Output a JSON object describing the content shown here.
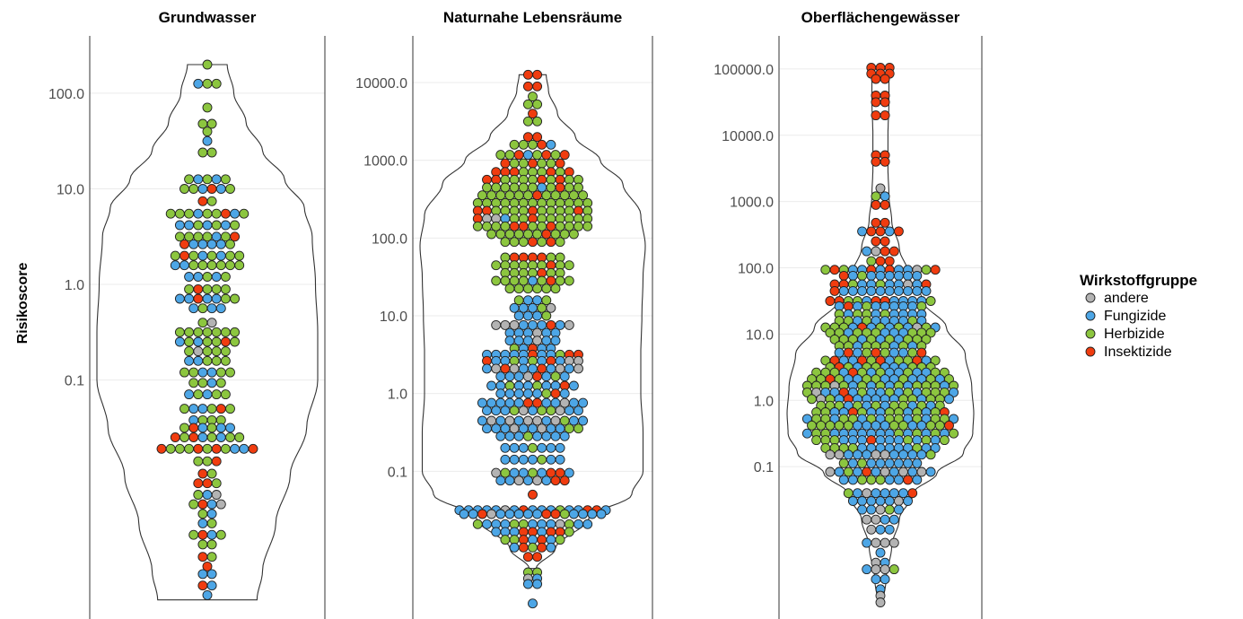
{
  "chart_data": {
    "type": "violin-beeswarm",
    "ylabel": "Risikoscore",
    "y_scale": "log10",
    "legend": {
      "title": "Wirkstoffgruppe",
      "placement": "right",
      "entries": [
        {
          "name": "andere",
          "color": "#b3b3b3"
        },
        {
          "name": "Fungizide",
          "color": "#4da6e6"
        },
        {
          "name": "Herbizide",
          "color": "#8cc63f"
        },
        {
          "name": "Insektizide",
          "color": "#f03c0f"
        }
      ]
    },
    "panels": [
      {
        "title": "Grundwasser",
        "ylim_log10": [
          -3.5,
          2.6
        ],
        "ticks": [
          {
            "value": 100,
            "label": "100.0"
          },
          {
            "value": 10,
            "label": "10.0"
          },
          {
            "value": 1,
            "label": "1.0"
          },
          {
            "value": 0.1,
            "label": "0.1"
          }
        ],
        "range_log10": [
          -3.3,
          2.3
        ],
        "density": [
          [
            -3.3,
            0.45
          ],
          [
            -3.0,
            0.5
          ],
          [
            -2.5,
            0.62
          ],
          [
            -2.0,
            0.75
          ],
          [
            -1.5,
            0.9
          ],
          [
            -1.0,
            1.0
          ],
          [
            -0.5,
            1.0
          ],
          [
            0.0,
            0.98
          ],
          [
            0.5,
            0.95
          ],
          [
            0.8,
            0.88
          ],
          [
            1.1,
            0.7
          ],
          [
            1.4,
            0.5
          ],
          [
            1.7,
            0.35
          ],
          [
            2.0,
            0.24
          ],
          [
            2.3,
            0.18
          ]
        ],
        "rows": [
          {
            "y": 2.3,
            "c": "H"
          },
          {
            "y": 2.1,
            "c": "FHH"
          },
          {
            "y": 1.85,
            "c": "H"
          },
          {
            "y": 1.68,
            "c": "HH"
          },
          {
            "y": 1.6,
            "c": "H"
          },
          {
            "y": 1.5,
            "c": "F"
          },
          {
            "y": 1.38,
            "c": "HH"
          },
          {
            "y": 1.1,
            "c": "HFHFH"
          },
          {
            "y": 1.0,
            "c": "HHFIFH"
          },
          {
            "y": 0.87,
            "c": "IH"
          },
          {
            "y": 0.74,
            "c": "HHHFHHIFH"
          },
          {
            "y": 0.62,
            "c": "FFHFHFH"
          },
          {
            "y": 0.5,
            "c": "HHHHFHI"
          },
          {
            "y": 0.42,
            "c": "IFFFFH"
          },
          {
            "y": 0.3,
            "c": "HIHFHFHH"
          },
          {
            "y": 0.2,
            "c": "FFHHHHHH"
          },
          {
            "y": 0.08,
            "c": "FFHFH"
          },
          {
            "y": -0.05,
            "c": "HIHHH"
          },
          {
            "y": -0.15,
            "c": "FFIFFHH"
          },
          {
            "y": -0.25,
            "c": "FHFF"
          },
          {
            "y": -0.4,
            "c": "HA"
          },
          {
            "y": -0.5,
            "c": "HHHHHHH"
          },
          {
            "y": -0.6,
            "c": "FHFHHIH"
          },
          {
            "y": -0.7,
            "c": "HAHHH"
          },
          {
            "y": -0.8,
            "c": "FFHHH"
          },
          {
            "y": -0.92,
            "c": "HHFFHH"
          },
          {
            "y": -1.03,
            "c": "HHFH"
          },
          {
            "y": -1.15,
            "c": "FHFHH"
          },
          {
            "y": -1.3,
            "c": "HFFHIH"
          },
          {
            "y": -1.42,
            "c": "FHHH"
          },
          {
            "y": -1.5,
            "c": "HIFHFF"
          },
          {
            "y": -1.6,
            "c": "IHIFHFHH"
          },
          {
            "y": -1.72,
            "c": "IHHHIHIHFFI"
          },
          {
            "y": -1.85,
            "c": "HHI"
          },
          {
            "y": -1.98,
            "c": "IH"
          },
          {
            "y": -2.08,
            "c": "IIH"
          },
          {
            "y": -2.2,
            "c": "HFA"
          },
          {
            "y": -2.3,
            "c": "HIFA"
          },
          {
            "y": -2.4,
            "c": "HF"
          },
          {
            "y": -2.5,
            "c": "FH"
          },
          {
            "y": -2.62,
            "c": "HIFH"
          },
          {
            "y": -2.72,
            "c": "HH"
          },
          {
            "y": -2.85,
            "c": "IH"
          },
          {
            "y": -2.95,
            "c": "I"
          },
          {
            "y": -3.03,
            "c": "FF"
          },
          {
            "y": -3.15,
            "c": "IF"
          },
          {
            "y": -3.25,
            "c": "F"
          }
        ]
      },
      {
        "title": "Naturnahe Lebensräume",
        "ylim_log10": [
          -2.9,
          4.6
        ],
        "ticks": [
          {
            "value": 10000,
            "label": "10000.0"
          },
          {
            "value": 1000,
            "label": "1000.0"
          },
          {
            "value": 100,
            "label": "100.0"
          },
          {
            "value": 10,
            "label": "10.0"
          },
          {
            "value": 1,
            "label": "1.0"
          },
          {
            "value": 0.1,
            "label": "0.1"
          }
        ],
        "range_log10": [
          -2.25,
          4.1
        ],
        "density": [
          [
            -2.25,
            0.03
          ],
          [
            -2.0,
            0.2
          ],
          [
            -1.6,
            0.5
          ],
          [
            -1.3,
            0.88
          ],
          [
            -1.0,
            0.98
          ],
          [
            -0.5,
            0.98
          ],
          [
            0.0,
            0.96
          ],
          [
            0.5,
            0.96
          ],
          [
            1.0,
            0.97
          ],
          [
            1.5,
            0.98
          ],
          [
            1.9,
            1.0
          ],
          [
            2.3,
            0.96
          ],
          [
            2.7,
            0.8
          ],
          [
            3.0,
            0.6
          ],
          [
            3.3,
            0.38
          ],
          [
            3.6,
            0.22
          ],
          [
            3.9,
            0.14
          ],
          [
            4.1,
            0.12
          ]
        ],
        "rows": [
          {
            "y": 4.1,
            "c": "II"
          },
          {
            "y": 3.95,
            "c": "II"
          },
          {
            "y": 3.82,
            "c": "H"
          },
          {
            "y": 3.72,
            "c": "HH"
          },
          {
            "y": 3.6,
            "c": "I"
          },
          {
            "y": 3.5,
            "c": "HH"
          },
          {
            "y": 3.3,
            "c": "II"
          },
          {
            "y": 3.2,
            "c": "HHHIF"
          },
          {
            "y": 3.07,
            "c": "HHIFHIHI"
          },
          {
            "y": 2.96,
            "c": "IHHIHHI"
          },
          {
            "y": 2.85,
            "c": "IIIHHHIHI"
          },
          {
            "y": 2.75,
            "c": "IIHHHHIHIHH"
          },
          {
            "y": 2.65,
            "c": "HHHHHHFHIHH"
          },
          {
            "y": 2.55,
            "c": "HHHHHHIHHHHH"
          },
          {
            "y": 2.45,
            "c": "HHHHHHHHHHHHH"
          },
          {
            "y": 2.35,
            "c": "IIHHHHIHHHHIH"
          },
          {
            "y": 2.25,
            "c": "IAAFHHIHHHHHH"
          },
          {
            "y": 2.15,
            "c": "HHHHIIHHIHHHH"
          },
          {
            "y": 2.05,
            "c": "HHHHHHIHHH"
          },
          {
            "y": 1.95,
            "c": "HHHIHIH"
          },
          {
            "y": 1.75,
            "c": "HIIIIHH"
          },
          {
            "y": 1.65,
            "c": "HHHHHHIHH"
          },
          {
            "y": 1.55,
            "c": "HHHHIHH"
          },
          {
            "y": 1.45,
            "c": "HHHHFHIHH"
          },
          {
            "y": 1.35,
            "c": "HHHHHH"
          },
          {
            "y": 1.2,
            "c": "HFFH"
          },
          {
            "y": 1.1,
            "c": "FFFHA"
          },
          {
            "y": 1.0,
            "c": "FFFH"
          },
          {
            "y": 0.88,
            "c": "AAAFFFIFA"
          },
          {
            "y": 0.78,
            "c": "FFFAFF"
          },
          {
            "y": 0.68,
            "c": "FFFAFF"
          },
          {
            "y": 0.58,
            "c": "HFIFF"
          },
          {
            "y": 0.5,
            "c": "FFFFFIFFHII"
          },
          {
            "y": 0.42,
            "c": "IFFHFHFIFAA"
          },
          {
            "y": 0.32,
            "c": "FAIAFFIFAFA"
          },
          {
            "y": 0.22,
            "c": "FFFAIFHF"
          },
          {
            "y": 0.1,
            "c": "FFHFFHFFIF"
          },
          {
            "y": 0.0,
            "c": "FFFFFHIF"
          },
          {
            "y": -0.12,
            "c": "FFFFFIIFFAFF"
          },
          {
            "y": -0.22,
            "c": "FFFHAFHHAFF"
          },
          {
            "y": -0.35,
            "c": "FAFAFAAFAHFF"
          },
          {
            "y": -0.45,
            "c": "FFFAFFAFFHH"
          },
          {
            "y": -0.55,
            "c": "FFFHFFFF"
          },
          {
            "y": -0.7,
            "c": "FFFHFFF"
          },
          {
            "y": -0.85,
            "c": "FFFFHFF"
          },
          {
            "y": -1.02,
            "c": "AHFFHFIIF"
          },
          {
            "y": -1.12,
            "c": "FFAFAFII"
          },
          {
            "y": -1.3,
            "c": "I"
          },
          {
            "y": -1.5,
            "c": "FFFFFAFIFFFHFFIIF"
          },
          {
            "y": -1.55,
            "c": "FFIAFFFFFIIHFFFF"
          },
          {
            "y": -1.68,
            "c": "HFFFHHFFFAHFF"
          },
          {
            "y": -1.78,
            "c": "FFFIIFIIH"
          },
          {
            "y": -1.88,
            "c": "HHIFIFH"
          },
          {
            "y": -1.98,
            "c": "FIHIF"
          },
          {
            "y": -2.1,
            "c": "II"
          },
          {
            "y": -2.3,
            "c": "HH"
          },
          {
            "y": -2.38,
            "c": "AF"
          },
          {
            "y": -2.45,
            "c": "FF"
          },
          {
            "y": -2.7,
            "c": "F"
          },
          {
            "y": -3.0,
            "c": "H"
          }
        ]
      },
      {
        "title": "Oberflächengewässer",
        "ylim_log10": [
          -3.3,
          5.5
        ],
        "ticks": [
          {
            "value": 100000,
            "label": "100000.0"
          },
          {
            "value": 10000,
            "label": "10000.0"
          },
          {
            "value": 1000,
            "label": "1000.0"
          },
          {
            "value": 100,
            "label": "100.0"
          },
          {
            "value": 10,
            "label": "10.0"
          },
          {
            "value": 1,
            "label": "1.0"
          },
          {
            "value": 0.1,
            "label": "0.1"
          }
        ],
        "range_log10": [
          -3.05,
          5.02
        ],
        "density": [
          [
            -3.05,
            0.03
          ],
          [
            -2.7,
            0.06
          ],
          [
            -2.2,
            0.12
          ],
          [
            -1.8,
            0.2
          ],
          [
            -1.4,
            0.35
          ],
          [
            -1.1,
            0.6
          ],
          [
            -0.8,
            0.88
          ],
          [
            -0.5,
            0.98
          ],
          [
            -0.2,
            0.99
          ],
          [
            0.2,
            0.97
          ],
          [
            0.7,
            0.9
          ],
          [
            1.1,
            0.7
          ],
          [
            1.5,
            0.45
          ],
          [
            1.9,
            0.3
          ],
          [
            2.3,
            0.2
          ],
          [
            2.7,
            0.12
          ],
          [
            3.1,
            0.09
          ],
          [
            3.5,
            0.08
          ],
          [
            4.0,
            0.08
          ],
          [
            4.5,
            0.09
          ],
          [
            4.85,
            0.09
          ],
          [
            5.02,
            0.08
          ]
        ],
        "rows": [
          {
            "y": 5.02,
            "c": "III"
          },
          {
            "y": 4.93,
            "c": "III"
          },
          {
            "y": 4.85,
            "c": "II"
          },
          {
            "y": 4.6,
            "c": "II"
          },
          {
            "y": 4.5,
            "c": "II"
          },
          {
            "y": 4.3,
            "c": "II"
          },
          {
            "y": 3.7,
            "c": "II"
          },
          {
            "y": 3.6,
            "c": "II"
          },
          {
            "y": 3.2,
            "c": "A"
          },
          {
            "y": 3.08,
            "c": "HF"
          },
          {
            "y": 2.95,
            "c": "II"
          },
          {
            "y": 2.68,
            "c": "II"
          },
          {
            "y": 2.55,
            "c": "FIIFI"
          },
          {
            "y": 2.4,
            "c": "II"
          },
          {
            "y": 2.25,
            "c": "FAII"
          },
          {
            "y": 2.1,
            "c": "HII"
          },
          {
            "y": 1.97,
            "c": "HIHFFIFIFFAHI"
          },
          {
            "y": 1.88,
            "c": "IFHFFFFFF"
          },
          {
            "y": 1.75,
            "c": "IIHFFHFFAFI"
          },
          {
            "y": 1.65,
            "c": "IFFFFFFFFFF"
          },
          {
            "y": 1.5,
            "c": "IIHHFIIFFFFH"
          },
          {
            "y": 1.42,
            "c": "FIFHFFFFFH"
          },
          {
            "y": 1.3,
            "c": "HFHHFHFFFF"
          },
          {
            "y": 1.2,
            "c": "HHFHFFFFHF"
          },
          {
            "y": 1.1,
            "c": "HHHFIFHFHFAHF"
          },
          {
            "y": 1.02,
            "c": "HHFHHHFFFHHH"
          },
          {
            "y": 0.92,
            "c": "HHHFHFHFHHH"
          },
          {
            "y": 0.82,
            "c": "HHFHHHFHFH"
          },
          {
            "y": 0.72,
            "c": "FIFHIHFFHI"
          },
          {
            "y": 0.6,
            "c": "HIFFIHIFHHIFH"
          },
          {
            "y": 0.5,
            "c": "HIHFHHFFFHHH"
          },
          {
            "y": 0.42,
            "c": "HHHFIHFHFFHFFHH"
          },
          {
            "y": 0.32,
            "c": "HHIHFFHHFFHFFHFH"
          },
          {
            "y": 0.22,
            "c": "HHHAHFHFHFHFHHHFH"
          },
          {
            "y": 0.12,
            "c": "HAFFIFHFFHFHFHHHF"
          },
          {
            "y": 0.02,
            "c": "HAHFIFFFFFHHFHHF"
          },
          {
            "y": -0.08,
            "c": "HHHFHFHFHHFHFH"
          },
          {
            "y": -0.18,
            "c": "HHFFIHFFHHFHFHI"
          },
          {
            "y": -0.28,
            "c": "FHHFHHFHFHHFHFHHF"
          },
          {
            "y": -0.38,
            "c": "HHHHHFFFFHHFFHHI"
          },
          {
            "y": -0.5,
            "c": "FHHFFFFFFFHFHFHFH"
          },
          {
            "y": -0.6,
            "c": "HHHFFFIFFFHFHFH"
          },
          {
            "y": -0.72,
            "c": "HHHHFFFFFFHFF"
          },
          {
            "y": -0.82,
            "c": "AAFFFAAFFFFH"
          },
          {
            "y": -0.95,
            "c": "HFHFFFFFF"
          },
          {
            "y": -1.08,
            "c": "AFHFIFAFAFAF"
          },
          {
            "y": -1.2,
            "c": "FFHHHFFIF"
          },
          {
            "y": -1.4,
            "c": "HFAFFFFI"
          },
          {
            "y": -1.52,
            "c": "FFFFFAF"
          },
          {
            "y": -1.65,
            "c": "FFAHF"
          },
          {
            "y": -1.8,
            "c": "AAFF"
          },
          {
            "y": -1.95,
            "c": "AFF"
          },
          {
            "y": -2.15,
            "c": "FAAA"
          },
          {
            "y": -2.3,
            "c": "F"
          },
          {
            "y": -2.45,
            "c": "AF"
          },
          {
            "y": -2.55,
            "c": "FAAH"
          },
          {
            "y": -2.7,
            "c": "FF"
          },
          {
            "y": -2.85,
            "c": "F"
          },
          {
            "y": -2.95,
            "c": "A"
          },
          {
            "y": -3.05,
            "c": "A"
          }
        ]
      }
    ]
  }
}
